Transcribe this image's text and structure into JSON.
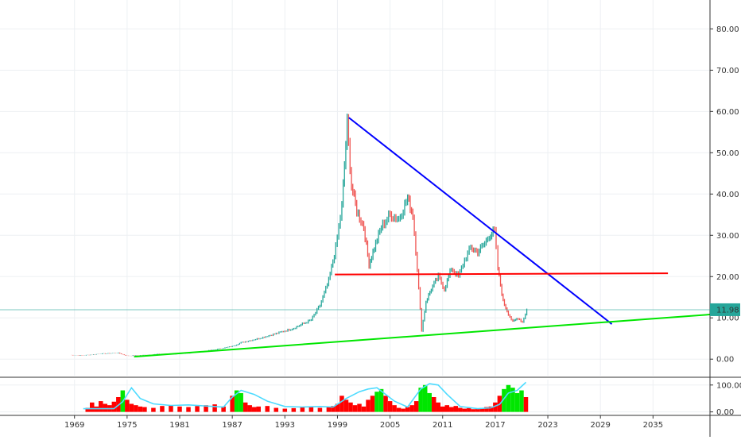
{
  "chart_data": [
    {
      "type": "candlestick",
      "title": "",
      "xlabel": "",
      "ylabel": "",
      "x_tick_labels": [
        "1969",
        "1975",
        "1981",
        "1987",
        "1993",
        "1999",
        "2005",
        "2011",
        "2017",
        "2023",
        "2029",
        "2035"
      ],
      "x_ticks": [
        1969,
        1975,
        1981,
        1987,
        1993,
        1999,
        2005,
        2011,
        2017,
        2023,
        2029,
        2035
      ],
      "xlim": [
        1960.5,
        2041.5
      ],
      "y_tick_labels": [
        "0.00",
        "10.00",
        "20.00",
        "30.00",
        "40.00",
        "50.00",
        "60.00",
        "70.00",
        "80.00"
      ],
      "y_ticks": [
        0,
        10,
        20,
        30,
        40,
        50,
        60,
        70,
        80
      ],
      "ylim": [
        -4,
        87
      ],
      "y_axis_position": "right",
      "grid": true,
      "last_price": 11.98,
      "last_price_label": "11.98",
      "last_price_color": "#26a69a",
      "price_series": {
        "up_color": "#26a69a",
        "down_color": "#ef5350",
        "x": [
          1968.5,
          1970,
          1972,
          1974,
          1975,
          1977,
          1979,
          1981,
          1983,
          1985,
          1987,
          1988,
          1990,
          1992,
          1994,
          1996,
          1997,
          1998,
          1998.8,
          1999.5,
          2000.1,
          2000.6,
          2001.2,
          2002,
          2002.6,
          2003.2,
          2004,
          2005,
          2006,
          2007,
          2007.6,
          2008.1,
          2008.6,
          2009.1,
          2009.7,
          2010.5,
          2011.2,
          2012,
          2012.8,
          2013.5,
          2014.2,
          2015,
          2015.8,
          2016.3,
          2016.9,
          2017.3,
          2017.9,
          2018.5,
          2019,
          2019.6,
          2020.1,
          2020.6
        ],
        "y": [
          1.0,
          0.9,
          1.3,
          1.5,
          0.8,
          1.0,
          1.3,
          1.2,
          1.7,
          2.3,
          3.1,
          4.0,
          5.0,
          6.2,
          7.5,
          9.5,
          13,
          19,
          27,
          37,
          57,
          42,
          36,
          32,
          23,
          27,
          32,
          35,
          34,
          39,
          35,
          22,
          7,
          14,
          17,
          20,
          17,
          22,
          20,
          24,
          27,
          26,
          28,
          30,
          31,
          22,
          14,
          11,
          9,
          10,
          9,
          12
        ]
      },
      "trendlines": [
        {
          "color": "#0000ff",
          "points": [
            [
              2000.3,
              58.5
            ],
            [
              2030.3,
              8.5
            ]
          ]
        },
        {
          "color": "#ff0000",
          "points": [
            [
              1998.7,
              20.5
            ],
            [
              2036.7,
              20.8
            ]
          ]
        },
        {
          "color": "#00e600",
          "points": [
            [
              1975.8,
              0.6
            ],
            [
              2044,
              11.2
            ]
          ]
        }
      ]
    },
    {
      "type": "histogram-oscillator",
      "y_tick_labels": [
        "0.00",
        "100.00"
      ],
      "y_ticks": [
        0,
        100
      ],
      "ylim": [
        -10,
        120
      ],
      "series": [
        {
          "type": "bar",
          "colors": {
            "low": "#ff0000",
            "high": "#00e600"
          },
          "high_threshold": 70,
          "x": [
            1970.5,
            1971,
            1971.5,
            1972,
            1972.5,
            1973,
            1973.5,
            1974,
            1974.5,
            1975,
            1975.5,
            1976,
            1976.5,
            1977,
            1978,
            1979,
            1980,
            1981,
            1982,
            1983,
            1984,
            1985,
            1986,
            1987,
            1987.5,
            1988,
            1988.5,
            1989,
            1989.5,
            1990,
            1991,
            1992,
            1993,
            1994,
            1995,
            1996,
            1997,
            1998,
            1998.5,
            1999,
            1999.5,
            2000,
            2000.5,
            2001,
            2001.5,
            2002,
            2002.5,
            2003,
            2003.5,
            2004,
            2004.5,
            2005,
            2005.5,
            2006,
            2006.5,
            2007,
            2007.5,
            2008,
            2008.5,
            2009,
            2009.5,
            2010,
            2010.5,
            2011,
            2011.5,
            2012,
            2012.5,
            2013,
            2013.5,
            2014,
            2014.5,
            2015,
            2015.5,
            2016,
            2016.5,
            2017,
            2017.5,
            2018,
            2018.5,
            2019,
            2019.5,
            2020,
            2020.5
          ],
          "values": [
            15,
            35,
            20,
            40,
            30,
            25,
            38,
            55,
            80,
            45,
            30,
            25,
            20,
            18,
            15,
            22,
            25,
            20,
            18,
            22,
            25,
            28,
            20,
            60,
            80,
            70,
            35,
            25,
            18,
            20,
            22,
            15,
            12,
            14,
            18,
            20,
            15,
            18,
            22,
            30,
            60,
            45,
            35,
            25,
            30,
            20,
            45,
            60,
            75,
            85,
            60,
            40,
            25,
            15,
            12,
            18,
            25,
            40,
            90,
            100,
            70,
            55,
            35,
            20,
            25,
            18,
            22,
            15,
            12,
            14,
            10,
            12,
            15,
            18,
            20,
            35,
            60,
            85,
            100,
            90,
            70,
            80,
            55
          ]
        },
        {
          "type": "line",
          "color": "#4ddbff",
          "x": [
            1970,
            1972,
            1973.5,
            1974.5,
            1975.5,
            1976.5,
            1978,
            1980,
            1982,
            1984,
            1986,
            1987,
            1988,
            1989.5,
            1991,
            1993,
            1995,
            1997,
            1998.5,
            2000,
            2001.5,
            2002.5,
            2003.5,
            2004.5,
            2005.5,
            2007,
            2008.5,
            2009.5,
            2010.5,
            2011.5,
            2013,
            2015,
            2016.5,
            2017.5,
            2018.5,
            2019.5,
            2020.5
          ],
          "values": [
            12,
            12,
            12,
            38,
            90,
            50,
            30,
            24,
            26,
            22,
            18,
            55,
            80,
            65,
            40,
            20,
            18,
            20,
            18,
            50,
            75,
            85,
            90,
            65,
            40,
            18,
            85,
            105,
            100,
            65,
            20,
            12,
            15,
            28,
            70,
            80,
            110
          ]
        }
      ]
    }
  ]
}
